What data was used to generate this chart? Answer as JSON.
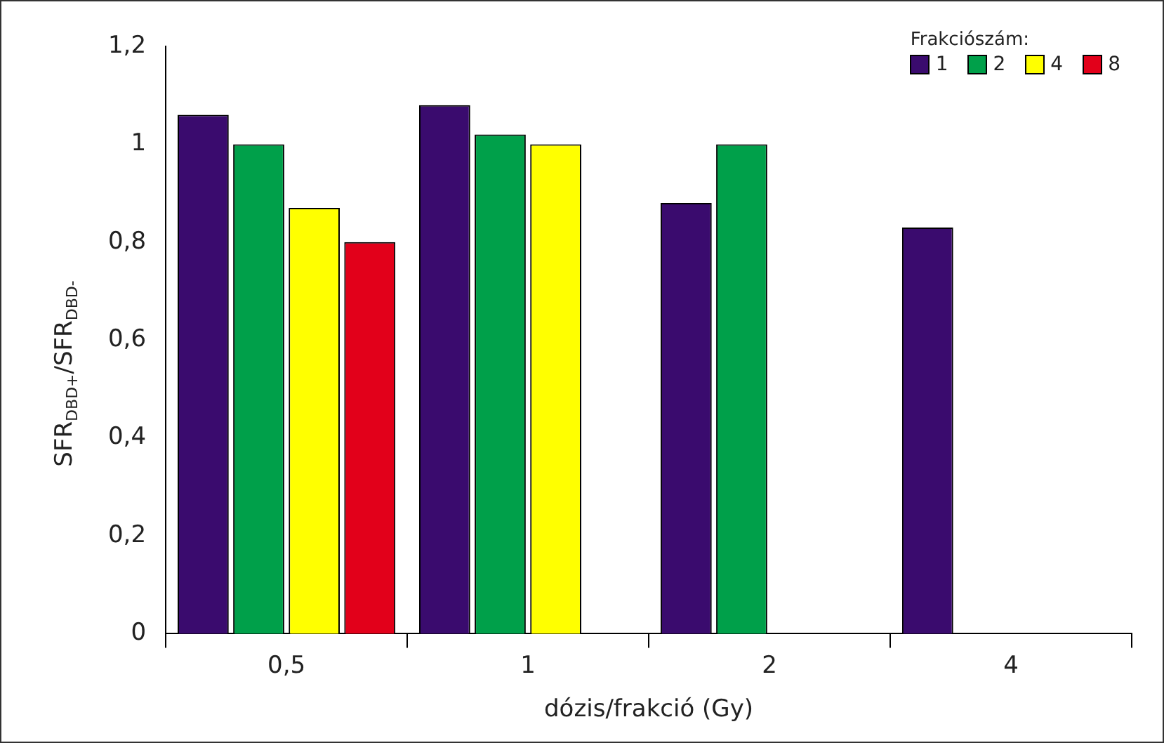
{
  "chart_data": {
    "type": "bar",
    "xlabel": "dózis/frakció (Gy)",
    "ylabel": "SFR$_{DBD+}$/SFR$_{DBD-}$",
    "legend_title": "Frakciószám:",
    "categories": [
      "0,5",
      "1",
      "2",
      "4"
    ],
    "series": [
      {
        "name": "1",
        "color": "#3a0b6e",
        "values": [
          1.06,
          1.08,
          0.88,
          0.83
        ]
      },
      {
        "name": "2",
        "color": "#00a04a",
        "values": [
          1.0,
          1.02,
          1.0,
          null
        ]
      },
      {
        "name": "4",
        "color": "#ffff00",
        "values": [
          0.87,
          1.0,
          null,
          null
        ]
      },
      {
        "name": "8",
        "color": "#e2001a",
        "values": [
          0.8,
          null,
          null,
          null
        ]
      }
    ],
    "ylim": [
      0,
      1.2
    ],
    "yticks": [
      0,
      {
        "value": 0.2,
        "label": "0,2"
      },
      {
        "value": 0.4,
        "label": "0,4"
      },
      {
        "value": 0.6,
        "label": "0,6"
      },
      {
        "value": 0.8,
        "label": "0,8"
      },
      1,
      {
        "value": 1.2,
        "label": "1,2"
      }
    ],
    "grid": false,
    "legend": "top right"
  }
}
